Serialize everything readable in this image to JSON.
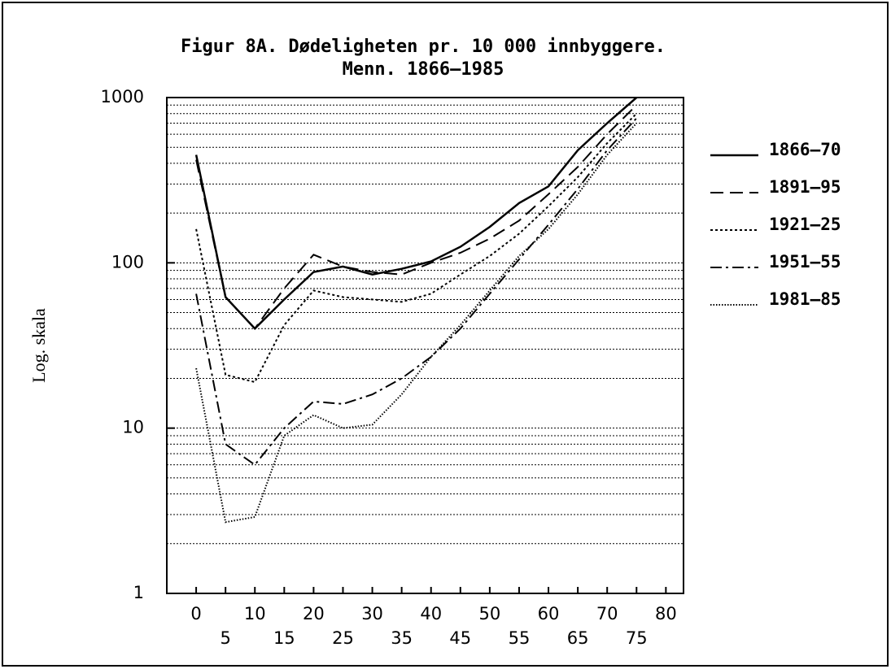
{
  "chart_data": {
    "type": "line",
    "title": "Figur 8A. Dødeligheten pr. 10 000 innbyggere.",
    "subtitle": "Menn. 1866–1985",
    "y_label": "Log. skala",
    "log_scale": true,
    "xlim": [
      -5,
      83
    ],
    "ylim": [
      1,
      1000
    ],
    "xticks": [
      0,
      5,
      10,
      15,
      20,
      25,
      30,
      35,
      40,
      45,
      50,
      55,
      60,
      65,
      70,
      75,
      80
    ],
    "yticks": [
      1,
      10,
      100,
      1000
    ],
    "grid_values": [
      2,
      3,
      4,
      5,
      6,
      7,
      8,
      9,
      10,
      20,
      30,
      40,
      50,
      60,
      70,
      80,
      90,
      100,
      200,
      300,
      400,
      500,
      600,
      700,
      800,
      900,
      1000
    ],
    "x": [
      0,
      5,
      10,
      15,
      20,
      25,
      30,
      35,
      40,
      45,
      50,
      55,
      60,
      65,
      70,
      75
    ],
    "series": [
      {
        "name": "1866–70",
        "color": "#000000",
        "dash": "solid",
        "values": [
          450,
          62,
          40,
          60,
          88,
          95,
          85,
          92,
          102,
          125,
          165,
          230,
          290,
          480,
          700,
          1000
        ]
      },
      {
        "name": "1891–95",
        "color": "#000000",
        "dash": "dashed",
        "values": [
          420,
          62,
          40,
          70,
          112,
          95,
          88,
          85,
          100,
          115,
          140,
          180,
          260,
          380,
          600,
          900
        ]
      },
      {
        "name": "1921–25",
        "color": "#000000",
        "dash": "dotted",
        "values": [
          160,
          21,
          19,
          42,
          68,
          62,
          60,
          58,
          65,
          85,
          110,
          150,
          220,
          330,
          530,
          800
        ]
      },
      {
        "name": "1951–55",
        "color": "#000000",
        "dash": "dashdot",
        "values": [
          65,
          8,
          6,
          10,
          14.5,
          14,
          16,
          20,
          27,
          40,
          65,
          105,
          170,
          280,
          480,
          750
        ]
      },
      {
        "name": "1981–85",
        "color": "#000000",
        "dash": "finedot",
        "values": [
          23,
          2.7,
          2.9,
          9,
          12,
          10,
          10.5,
          16,
          27,
          42,
          68,
          110,
          160,
          260,
          450,
          700
        ]
      }
    ]
  }
}
